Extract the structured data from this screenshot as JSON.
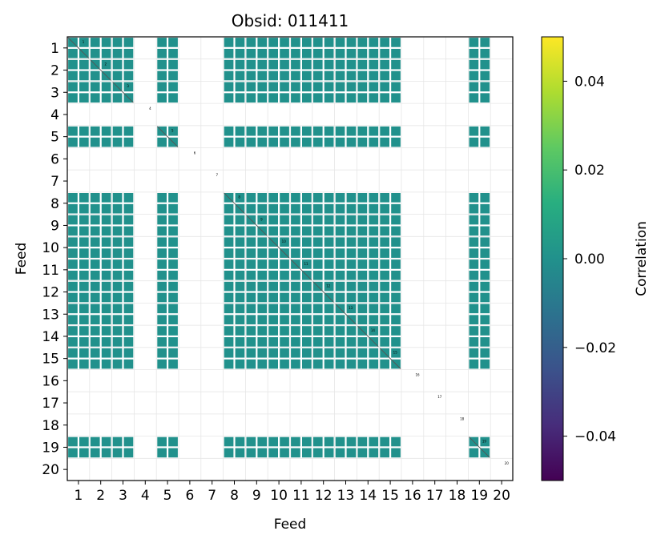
{
  "chart_data": {
    "type": "heatmap",
    "title": "Obsid: 011411",
    "xlabel": "Feed",
    "ylabel": "Feed",
    "feeds": [
      "1",
      "2",
      "3",
      "4",
      "5",
      "6",
      "7",
      "8",
      "9",
      "10",
      "11",
      "12",
      "13",
      "14",
      "15",
      "16",
      "17",
      "18",
      "19",
      "20"
    ],
    "active_feeds": [
      1,
      2,
      3,
      5,
      8,
      9,
      10,
      11,
      12,
      13,
      14,
      15,
      19
    ],
    "cell_value": 0.0,
    "colorbar": {
      "label": "Correlation",
      "range": [
        -0.05,
        0.05
      ],
      "ticks": [
        0.04,
        0.02,
        0.0,
        -0.02,
        -0.04
      ],
      "tick_labels": [
        "0.04",
        "0.02",
        "0.00",
        "−0.02",
        "−0.04"
      ],
      "colormap": "viridis"
    },
    "grid": true
  },
  "colors": {
    "cell": "#21918c",
    "diagonal": "#555555",
    "grid": "#e6e6e6"
  }
}
